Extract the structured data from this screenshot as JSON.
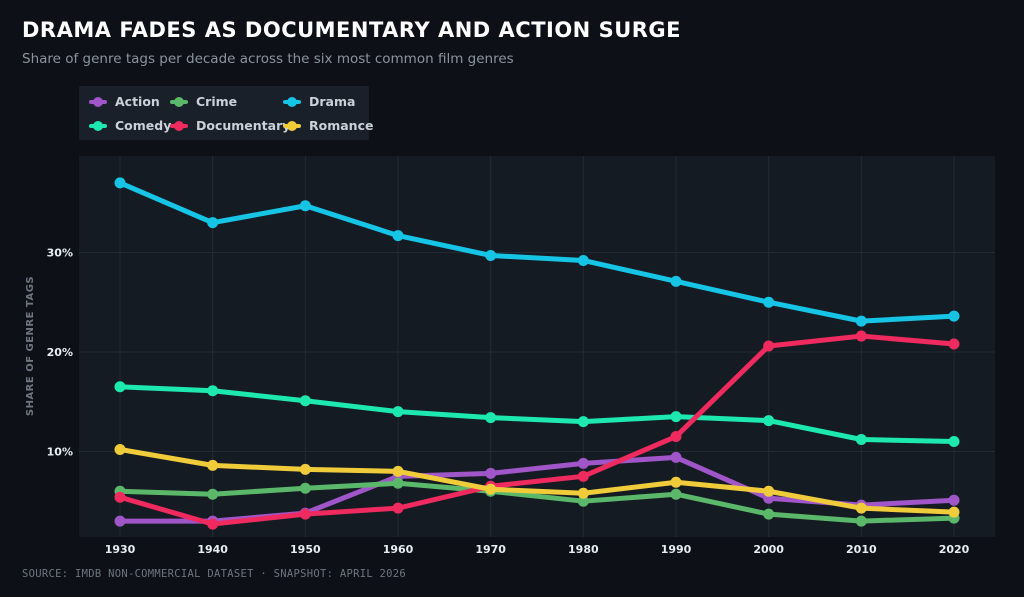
{
  "chart_data": {
    "type": "line",
    "title": "DRAMA FADES AS DOCUMENTARY AND ACTION SURGE",
    "subtitle": "Share of genre tags per decade across the six most common film genres",
    "xlabel": "",
    "ylabel": "SHARE OF GENRE TAGS",
    "x": [
      "1930",
      "1940",
      "1950",
      "1960",
      "1970",
      "1980",
      "1990",
      "2000",
      "2010",
      "2020"
    ],
    "ylim": [
      1.4,
      39.7
    ],
    "yticks": [
      10,
      20,
      30
    ],
    "ytick_labels": [
      "10%",
      "20%",
      "30%"
    ],
    "grid": true,
    "legend_position": "top-left",
    "series": [
      {
        "name": "Action",
        "color": "#a056c8",
        "values": [
          3.0,
          3.0,
          3.8,
          7.5,
          7.8,
          8.8,
          9.4,
          5.3,
          4.6,
          5.1
        ]
      },
      {
        "name": "Crime",
        "color": "#5bb86a",
        "values": [
          6.0,
          5.7,
          6.3,
          6.8,
          6.0,
          5.0,
          5.7,
          3.7,
          3.0,
          3.3
        ]
      },
      {
        "name": "Drama",
        "color": "#16c4e6",
        "values": [
          37.0,
          33.0,
          34.7,
          31.7,
          29.7,
          29.2,
          27.1,
          25.0,
          23.1,
          23.6
        ]
      },
      {
        "name": "Comedy",
        "color": "#1de8b0",
        "values": [
          16.5,
          16.1,
          15.1,
          14.0,
          13.4,
          13.0,
          13.5,
          13.1,
          11.2,
          11.0
        ]
      },
      {
        "name": "Documentary",
        "color": "#ee2a5e",
        "values": [
          5.4,
          2.7,
          3.7,
          4.3,
          6.5,
          7.5,
          11.5,
          20.6,
          21.6,
          20.8
        ]
      },
      {
        "name": "Romance",
        "color": "#f0cc3a",
        "values": [
          10.2,
          8.6,
          8.2,
          8.0,
          6.2,
          5.8,
          6.9,
          6.0,
          4.3,
          3.9
        ]
      }
    ]
  },
  "legend": {
    "items": [
      {
        "label": "Action",
        "color": "#a056c8"
      },
      {
        "label": "Crime",
        "color": "#5bb86a"
      },
      {
        "label": "Drama",
        "color": "#16c4e6"
      },
      {
        "label": "Comedy",
        "color": "#1de8b0"
      },
      {
        "label": "Documentary",
        "color": "#ee2a5e"
      },
      {
        "label": "Romance",
        "color": "#f0cc3a"
      }
    ]
  },
  "source": "SOURCE: IMDB NON-COMMERCIAL DATASET · SNAPSHOT: APRIL 2026"
}
